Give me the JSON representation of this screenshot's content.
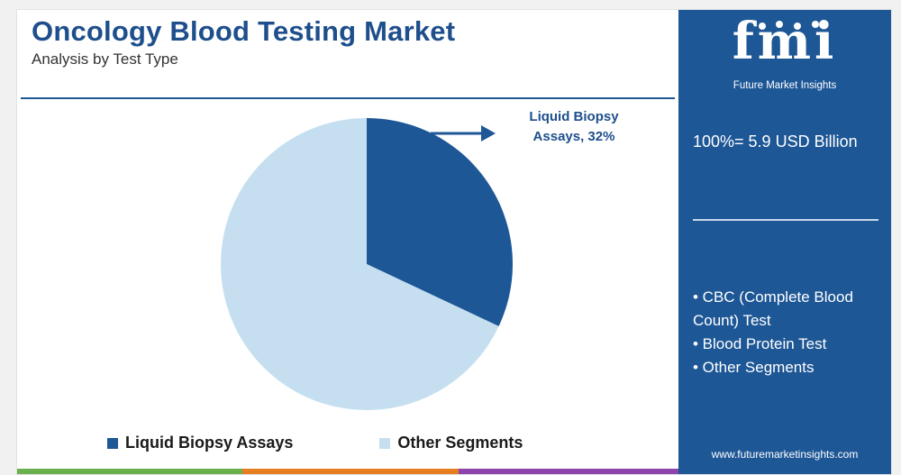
{
  "title": "Oncology Blood Testing Market",
  "subtitle": "Analysis by Test Type",
  "chart_data": {
    "type": "pie",
    "title": "Oncology Blood Testing Market",
    "subtitle": "Analysis by Test Type",
    "slices": [
      {
        "label": "Liquid Biopsy Assays",
        "value": 32,
        "color": "#1e5796"
      },
      {
        "label": "Other Segments",
        "value": 68,
        "color": "#c5dff0"
      }
    ],
    "annotation": "Liquid Biopsy Assays, 32%",
    "legend_position": "bottom"
  },
  "callout": {
    "line1": "Liquid Biopsy",
    "line2": "Assays, 32%"
  },
  "legend": [
    {
      "label": "Liquid Biopsy Assays",
      "color": "#1e5796"
    },
    {
      "label": "Other Segments",
      "color": "#c5dff0"
    }
  ],
  "sidebar": {
    "logo_letters": "fmi",
    "logo_text": "Future Market Insights",
    "total": "100%= 5.9 USD Billion",
    "segments": [
      "• CBC (Complete Blood Count) Test",
      "• Blood Protein Test",
      "• Other Segments"
    ],
    "url": "www.futuremarketinsights.com"
  },
  "colors": {
    "accent": "#1e5796",
    "light": "#c5dff0",
    "bar": [
      "#6ab04c",
      "#e67e22",
      "#8e44ad",
      "#1e5796"
    ]
  }
}
